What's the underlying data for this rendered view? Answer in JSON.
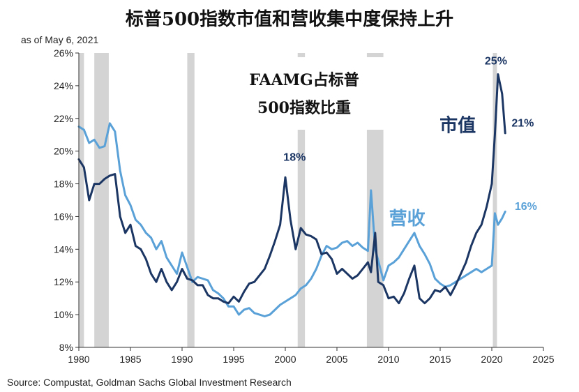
{
  "chart_data": {
    "type": "line",
    "title": "标普500指数市值和营收集中度保持上升",
    "subtitle": "as of May 6, 2021",
    "source": "Source: Compustat, Goldman Sachs Global Investment Research",
    "inset_title": [
      "FAAMG占标普",
      "500指数比重"
    ],
    "xlabel": "",
    "ylabel": "",
    "xlim": [
      1980,
      2025
    ],
    "ylim": [
      8,
      26
    ],
    "x_ticks": [
      1980,
      1985,
      1990,
      1995,
      2000,
      2005,
      2010,
      2015,
      2020,
      2025
    ],
    "y_ticks": [
      {
        "value": 8,
        "label": "8%"
      },
      {
        "value": 10,
        "label": "10%"
      },
      {
        "value": 12,
        "label": "12%"
      },
      {
        "value": 14,
        "label": "14%"
      },
      {
        "value": 16,
        "label": "16%"
      },
      {
        "value": 18,
        "label": "18%"
      },
      {
        "value": 20,
        "label": "20%"
      },
      {
        "value": 22,
        "label": "22%"
      },
      {
        "value": 24,
        "label": "24%"
      },
      {
        "value": 26,
        "label": "26%"
      }
    ],
    "grid": false,
    "recessions": [
      {
        "start": 1980.0,
        "end": 1980.5
      },
      {
        "start": 1981.5,
        "end": 1982.9
      },
      {
        "start": 1990.5,
        "end": 1991.2
      },
      {
        "start": 2001.2,
        "end": 2001.9
      },
      {
        "start": 2007.9,
        "end": 2009.5
      },
      {
        "start": 2020.1,
        "end": 2020.5
      }
    ],
    "series": [
      {
        "name": "市值",
        "color": "#1c3664",
        "x": [
          1980,
          1980.5,
          1981,
          1981.5,
          1982,
          1982.5,
          1983,
          1983.5,
          1984,
          1984.5,
          1985,
          1985.5,
          1986,
          1986.5,
          1987,
          1987.5,
          1988,
          1988.5,
          1989,
          1989.5,
          1990,
          1990.5,
          1991,
          1991.5,
          1992,
          1992.5,
          1993,
          1993.5,
          1994,
          1994.5,
          1995,
          1995.5,
          1996,
          1996.5,
          1997,
          1997.5,
          1998,
          1998.5,
          1999,
          1999.5,
          2000,
          2000.5,
          2001,
          2001.5,
          2002,
          2002.5,
          2003,
          2003.5,
          2004,
          2004.5,
          2005,
          2005.5,
          2006,
          2006.5,
          2007,
          2007.5,
          2008,
          2008.3,
          2008.7,
          2009,
          2009.5,
          2010,
          2010.5,
          2011,
          2011.5,
          2012,
          2012.5,
          2013,
          2013.5,
          2014,
          2014.5,
          2015,
          2015.5,
          2016,
          2016.5,
          2017,
          2017.5,
          2018,
          2018.5,
          2019,
          2019.5,
          2020,
          2020.3,
          2020.6,
          2021,
          2021.3
        ],
        "values": [
          19.5,
          19.0,
          17.0,
          18.0,
          18.0,
          18.3,
          18.5,
          18.6,
          16.0,
          15.0,
          15.5,
          14.2,
          14.0,
          13.4,
          12.5,
          12.0,
          12.8,
          12.0,
          11.5,
          12.0,
          12.8,
          12.2,
          12.1,
          11.8,
          11.8,
          11.2,
          11.0,
          11.0,
          10.8,
          10.7,
          11.1,
          10.8,
          11.4,
          11.9,
          12.0,
          12.4,
          12.8,
          13.6,
          14.5,
          15.5,
          18.4,
          15.8,
          14.0,
          15.3,
          14.9,
          14.8,
          14.6,
          13.7,
          13.8,
          13.4,
          12.5,
          12.8,
          12.5,
          12.2,
          12.4,
          12.8,
          13.2,
          12.6,
          15.0,
          12.0,
          11.8,
          11.0,
          11.1,
          10.7,
          11.3,
          12.2,
          13.0,
          11.0,
          10.7,
          11.0,
          11.5,
          11.4,
          11.7,
          11.2,
          11.8,
          12.5,
          13.2,
          14.2,
          15.0,
          15.5,
          16.6,
          18.0,
          21.0,
          24.7,
          23.5,
          21.1
        ]
      },
      {
        "name": "营收",
        "color": "#5aa1d8",
        "x": [
          1980,
          1980.5,
          1981,
          1981.5,
          1982,
          1982.5,
          1983,
          1983.5,
          1984,
          1984.5,
          1985,
          1985.5,
          1986,
          1986.5,
          1987,
          1987.5,
          1988,
          1988.5,
          1989,
          1989.5,
          1990,
          1990.5,
          1991,
          1991.5,
          1992,
          1992.5,
          1993,
          1993.5,
          1994,
          1994.5,
          1995,
          1995.5,
          1996,
          1996.5,
          1997,
          1997.5,
          1998,
          1998.5,
          1999,
          1999.5,
          2000,
          2000.5,
          2001,
          2001.5,
          2002,
          2002.5,
          2003,
          2003.5,
          2004,
          2004.5,
          2005,
          2005.5,
          2006,
          2006.5,
          2007,
          2007.5,
          2008,
          2008.3,
          2008.7,
          2009,
          2009.5,
          2010,
          2010.5,
          2011,
          2011.5,
          2012,
          2012.5,
          2013,
          2013.5,
          2014,
          2014.5,
          2015,
          2015.5,
          2016,
          2016.5,
          2017,
          2017.5,
          2018,
          2018.5,
          2019,
          2019.5,
          2020,
          2020.3,
          2020.6,
          2021,
          2021.3
        ],
        "values": [
          21.5,
          21.3,
          20.5,
          20.7,
          20.2,
          20.3,
          21.7,
          21.2,
          18.8,
          17.3,
          16.7,
          15.8,
          15.5,
          15.0,
          14.7,
          14.0,
          14.5,
          13.5,
          13.0,
          12.5,
          13.8,
          12.9,
          12.0,
          12.3,
          12.2,
          12.1,
          11.5,
          11.3,
          11.0,
          10.5,
          10.5,
          10.0,
          10.3,
          10.4,
          10.1,
          10.0,
          9.9,
          10.0,
          10.3,
          10.6,
          10.8,
          11.0,
          11.2,
          11.6,
          11.8,
          12.2,
          12.8,
          13.6,
          14.2,
          14.0,
          14.1,
          14.4,
          14.5,
          14.2,
          14.4,
          14.1,
          13.9,
          17.6,
          14.0,
          13.3,
          12.1,
          13.0,
          13.2,
          13.5,
          14.0,
          14.5,
          15.0,
          14.2,
          13.7,
          13.1,
          12.2,
          11.9,
          11.7,
          11.8,
          12.0,
          12.2,
          12.4,
          12.6,
          12.8,
          12.6,
          12.8,
          13.0,
          16.2,
          15.5,
          15.9,
          16.3
        ]
      }
    ],
    "annotations": [
      {
        "text": "18%",
        "x": 2000.9,
        "y": 19.4,
        "color": "#1c3664"
      },
      {
        "text": "25%",
        "x": 2020.4,
        "y": 25.3,
        "color": "#1c3664"
      },
      {
        "text": "21%",
        "x": 2023.0,
        "y": 21.5,
        "color": "#1c3664"
      },
      {
        "text": "16%",
        "x": 2023.3,
        "y": 16.4,
        "color": "#5aa1d8"
      },
      {
        "text": "市值",
        "x": 2016.7,
        "y": 21.2,
        "color": "#1c3664"
      },
      {
        "text": "营收",
        "x": 2011.8,
        "y": 15.5,
        "color": "#5aa1d8"
      }
    ]
  }
}
